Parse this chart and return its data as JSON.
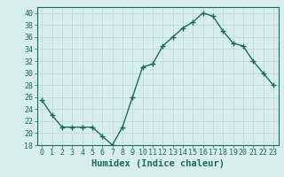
{
  "x": [
    0,
    1,
    2,
    3,
    4,
    5,
    6,
    7,
    8,
    9,
    10,
    11,
    12,
    13,
    14,
    15,
    16,
    17,
    18,
    19,
    20,
    21,
    22,
    23
  ],
  "y": [
    25.5,
    23,
    21,
    21,
    21,
    21,
    19.5,
    18,
    21,
    26,
    31,
    31.5,
    34.5,
    36,
    37.5,
    38.5,
    40,
    39.5,
    37,
    35,
    34.5,
    32,
    30,
    28
  ],
  "line_color": "#1a6b5e",
  "marker": "+",
  "marker_size": 4,
  "background_color": "#d8eeee",
  "grid_color": "#b8d8d8",
  "xlabel": "Humidex (Indice chaleur)",
  "ylim": [
    18,
    41
  ],
  "xlim": [
    -0.5,
    23.5
  ],
  "yticks": [
    18,
    20,
    22,
    24,
    26,
    28,
    30,
    32,
    34,
    36,
    38,
    40
  ],
  "xticks": [
    0,
    1,
    2,
    3,
    4,
    5,
    6,
    7,
    8,
    9,
    10,
    11,
    12,
    13,
    14,
    15,
    16,
    17,
    18,
    19,
    20,
    21,
    22,
    23
  ],
  "tick_color": "#1a6b5e",
  "xlabel_fontsize": 7.5,
  "tick_fontsize": 6,
  "line_width": 1.0,
  "marker_color": "#1a6b5e",
  "spine_color": "#1a6b5e"
}
